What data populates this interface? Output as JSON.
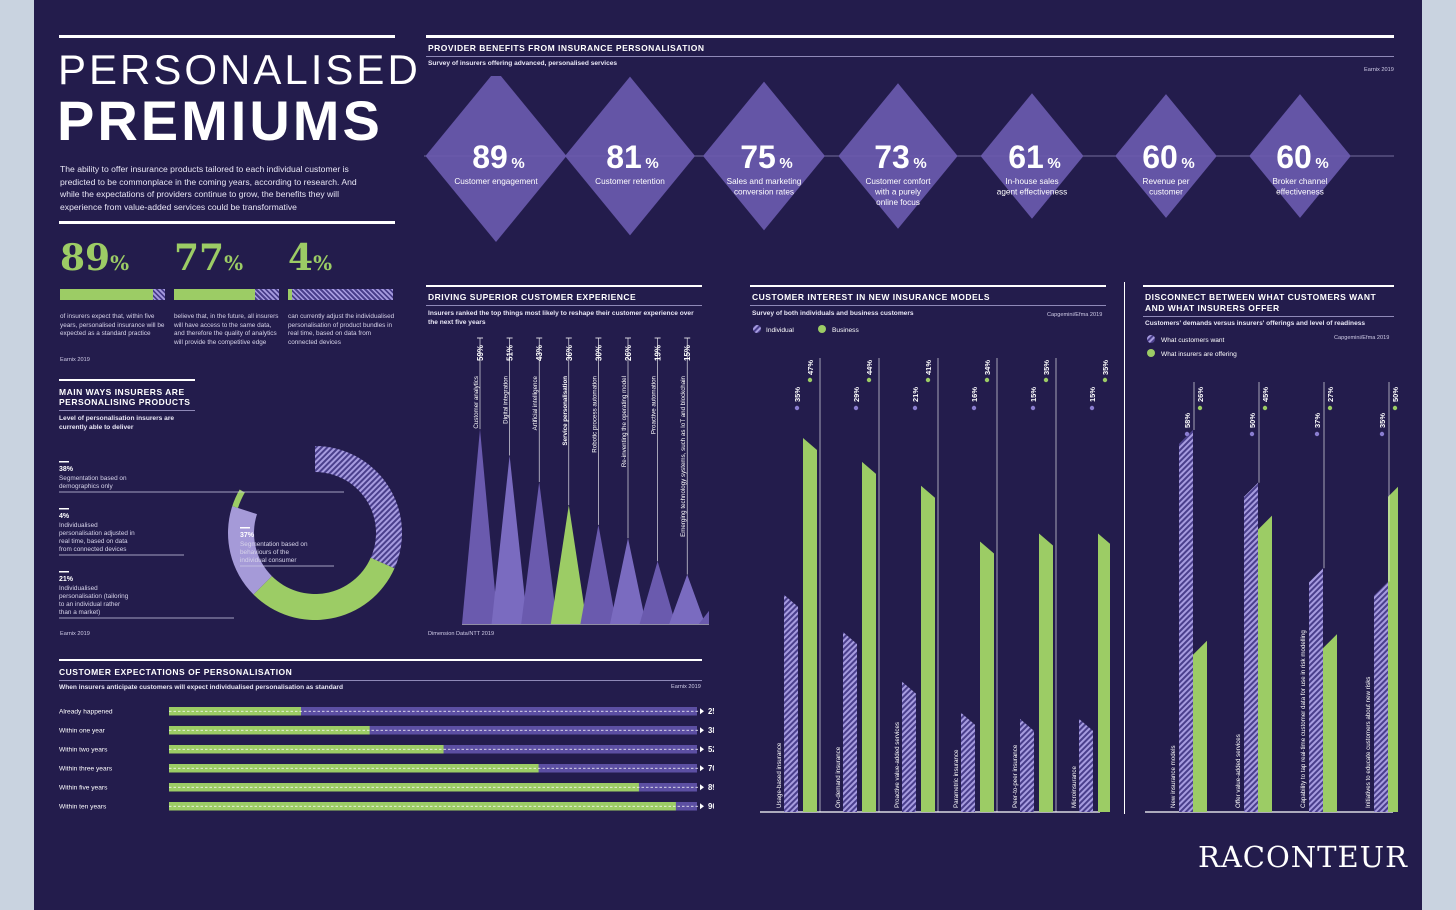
{
  "header": {
    "title_line1": "PERSONALISED",
    "title_line2": "PREMIUMS",
    "intro": "The ability to offer insurance products tailored to each individual customer is predicted to be commonplace in the coming years, according to research. And while the expectations of providers continue to grow, the benefits they will experience from value-added services could be transformative"
  },
  "colors": {
    "background": "#231c4c",
    "purple": "#6a5aae",
    "light_purple": "#9b8fd0",
    "green": "#9ccc65"
  },
  "stats": {
    "items": [
      {
        "value": "89",
        "unit": "%",
        "pct": 89,
        "text": "of insurers expect that, within five years, personalised insurance will be expected as a standard practice"
      },
      {
        "value": "77",
        "unit": "%",
        "pct": 77,
        "text": "believe that, in the future, all insurers will have access to the same data, and therefore the quality of analytics will provide the competitive edge"
      },
      {
        "value": "4",
        "unit": "%",
        "pct": 4,
        "text": "can currently adjust the individualised personalisation of product bundles in real time, based on data from connected devices"
      }
    ],
    "source": "Earnix 2019"
  },
  "donut": {
    "title": "MAIN WAYS INSURERS ARE PERSONALISING PRODUCTS",
    "subtitle": "Level of personalisation insurers are currently able to deliver",
    "segments": [
      {
        "pct": "38%",
        "label": "Segmentation based on demographics only",
        "value": 38
      },
      {
        "pct": "4%",
        "label": "Individualised personalisation adjusted in real time, based on data from connected devices",
        "value": 4
      },
      {
        "pct": "21%",
        "label": "Individualised personalisation (tailoring to an individual rather than a market)",
        "value": 21
      },
      {
        "pct": "37%",
        "label": "Segmentation based on behaviours of the individual consumer",
        "value": 37
      }
    ],
    "source": "Earnix 2019"
  },
  "provider": {
    "title": "PROVIDER BENEFITS FROM INSURANCE PERSONALISATION",
    "subtitle": "Survey of insurers offering advanced, personalised services",
    "source": "Earnix 2019",
    "items": [
      {
        "value": "89",
        "label": "Customer engagement"
      },
      {
        "value": "81",
        "label": "Customer retention"
      },
      {
        "value": "75",
        "label": "Sales and marketing conversion rates"
      },
      {
        "value": "73",
        "label": "Customer comfort with a purely online focus"
      },
      {
        "value": "61",
        "label": "In-house sales agent effectiveness"
      },
      {
        "value": "60",
        "label": "Revenue per customer"
      },
      {
        "value": "60",
        "label": "Broker channel effectiveness"
      }
    ],
    "unit": "%"
  },
  "driving": {
    "title": "DRIVING SUPERIOR CUSTOMER EXPERIENCE",
    "subtitle": "Insurers ranked the top things most likely to reshape their customer experience over the next five years",
    "source": "Dimension Data/NTT 2019"
  },
  "interest": {
    "title": "CUSTOMER INTEREST IN NEW INSURANCE MODELS",
    "subtitle": "Survey of both individuals and business customers",
    "source": "Capgemini/Efma 2019",
    "legend": [
      "Individual",
      "Business"
    ]
  },
  "disconnect": {
    "title": "DISCONNECT BETWEEN WHAT CUSTOMERS WANT AND WHAT INSURERS OFFER",
    "subtitle": "Customers' demands versus insurers' offerings and level of readiness",
    "source": "Capgemini/Efma 2019",
    "legend": [
      "What customers want",
      "What insurers are offering"
    ]
  },
  "expectations": {
    "title": "CUSTOMER EXPECTATIONS OF PERSONALISATION",
    "subtitle": "When insurers anticipate customers will expect individualised personalisation as standard",
    "source": "Earnix 2019"
  },
  "brand": "RACONTEUR",
  "chart_data": [
    {
      "type": "bar",
      "title": "DRIVING SUPERIOR CUSTOMER EXPERIENCE",
      "categories": [
        "Customer analytics",
        "Digital integration",
        "Artificial intelligence",
        "Service personalisation",
        "Robotic process automation",
        "Re-inventing the operating model",
        "Proactive automation",
        "Emerging technology systems, such as IoT and blockchain",
        "Natural voice interfaces"
      ],
      "values": [
        59,
        51,
        43,
        36,
        30,
        26,
        19,
        15,
        7
      ],
      "unit": "%",
      "highlight": "Service personalisation"
    },
    {
      "type": "bar",
      "title": "CUSTOMER INTEREST IN NEW INSURANCE MODELS",
      "categories": [
        "Usage-based insurance",
        "On-demand insurance",
        "Proactive value-added services",
        "Parametric insurance",
        "Peer-to-peer insurance",
        "Microinsurance"
      ],
      "series": [
        {
          "name": "Individual",
          "values": [
            35,
            29,
            21,
            16,
            15,
            15
          ]
        },
        {
          "name": "Business",
          "values": [
            47,
            44,
            41,
            34,
            35,
            35
          ]
        }
      ],
      "unit": "%"
    },
    {
      "type": "bar",
      "title": "DISCONNECT BETWEEN WHAT CUSTOMERS WANT AND WHAT INSURERS OFFER",
      "categories": [
        "New insurance models",
        "Offer value-added services",
        "Capability to tap real-time customer data for use in risk modelling",
        "Initiatives to educate customers about new risks"
      ],
      "series": [
        {
          "name": "What customers want",
          "values": [
            58,
            50,
            37,
            35
          ]
        },
        {
          "name": "What insurers are offering",
          "values": [
            26,
            45,
            27,
            50
          ]
        }
      ],
      "unit": "%"
    },
    {
      "type": "bar",
      "title": "CUSTOMER EXPECTATIONS OF PERSONALISATION",
      "categories": [
        "Already happened",
        "Within one year",
        "Within two years",
        "Within three years",
        "Within five years",
        "Within ten years"
      ],
      "values": [
        25,
        38,
        52,
        70,
        89,
        96
      ],
      "unit": "%"
    }
  ]
}
